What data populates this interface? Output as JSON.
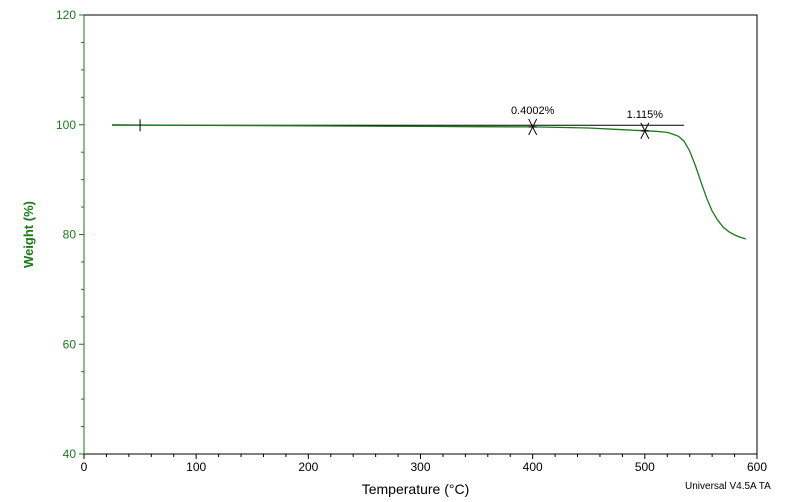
{
  "chart_data": {
    "type": "line",
    "xlabel": "Temperature (°C)",
    "ylabel": "Weight (%)",
    "xlim": [
      0,
      600
    ],
    "ylim": [
      40,
      120
    ],
    "x_ticks": [
      "0",
      "100",
      "200",
      "300",
      "400",
      "500",
      "600"
    ],
    "y_ticks": [
      "40",
      "60",
      "80",
      "100",
      "120"
    ],
    "grid": false,
    "series": [
      {
        "color": "#1a7a1a",
        "x": [
          25,
          50,
          100,
          150,
          200,
          250,
          300,
          350,
          400,
          450,
          480,
          500,
          510,
          520,
          525,
          530,
          535,
          540,
          545,
          550,
          555,
          560,
          565,
          570,
          575,
          580,
          585,
          590
        ],
        "y": [
          100.0,
          99.95,
          99.9,
          99.85,
          99.8,
          99.75,
          99.7,
          99.65,
          99.6,
          99.4,
          99.1,
          98.9,
          98.8,
          98.6,
          98.3,
          97.9,
          97.0,
          95.2,
          92.6,
          89.6,
          86.7,
          84.3,
          82.6,
          81.3,
          80.5,
          79.9,
          79.5,
          79.2
        ]
      }
    ],
    "reference_line": {
      "color": "#000000",
      "x_start": 25,
      "x_end": 535,
      "y": 99.9
    },
    "start_marker_x": 50,
    "annotations": [
      {
        "text": "0.4002%",
        "x": 400,
        "y": 99.6
      },
      {
        "text": "1.115%",
        "x": 500,
        "y": 98.9
      }
    ],
    "footer": "Universal V4.5A TA"
  }
}
